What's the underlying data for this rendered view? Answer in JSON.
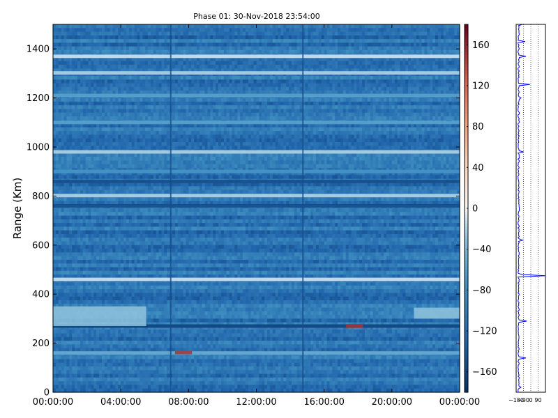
{
  "chart_data": [
    {
      "type": "heatmap",
      "title": "Phase 01: 30-Nov-2018 23:54:00",
      "xlabel": "",
      "ylabel": "Range (Km)",
      "xlim": [
        0,
        24
      ],
      "ylim": [
        0,
        1500
      ],
      "x_ticks": [
        {
          "value": 0,
          "label": "00:00:00"
        },
        {
          "value": 4,
          "label": "04:00:00"
        },
        {
          "value": 8,
          "label": "08:00:00"
        },
        {
          "value": 12,
          "label": "12:00:00"
        },
        {
          "value": 16,
          "label": "16:00:00"
        },
        {
          "value": 20,
          "label": "20:00:00"
        },
        {
          "value": 24,
          "label": "00:00:00"
        }
      ],
      "y_ticks": [
        {
          "value": 0,
          "label": "0"
        },
        {
          "value": 200,
          "label": "200"
        },
        {
          "value": 400,
          "label": "400"
        },
        {
          "value": 600,
          "label": "600"
        },
        {
          "value": 800,
          "label": "800"
        },
        {
          "value": 1000,
          "label": "1000"
        },
        {
          "value": 1200,
          "label": "1200"
        },
        {
          "value": 1400,
          "label": "1400"
        }
      ],
      "colorbar": {
        "colormap": "RdBu_r",
        "range": [
          -180,
          180
        ],
        "ticks": [
          {
            "value": 160,
            "label": "160"
          },
          {
            "value": 120,
            "label": "120"
          },
          {
            "value": 80,
            "label": "80"
          },
          {
            "value": 40,
            "label": "40"
          },
          {
            "value": 0,
            "label": "0"
          },
          {
            "value": -40,
            "label": "−40"
          },
          {
            "value": -80,
            "label": "−80"
          },
          {
            "value": -120,
            "label": "−120"
          },
          {
            "value": -160,
            "label": "−160"
          }
        ]
      },
      "background_phase": -110,
      "bands": [
        {
          "range_km": 1370,
          "phase": -10
        },
        {
          "range_km": 1302,
          "phase": -20
        },
        {
          "range_km": 1210,
          "phase": -60
        },
        {
          "range_km": 1100,
          "phase": -60
        },
        {
          "range_km": 980,
          "phase": -20
        },
        {
          "range_km": 900,
          "phase": -70
        },
        {
          "range_km": 860,
          "phase": -150
        },
        {
          "range_km": 802,
          "phase": -20
        },
        {
          "range_km": 760,
          "phase": -150
        },
        {
          "range_km": 460,
          "phase": -10
        },
        {
          "range_km": 270,
          "phase": -160
        },
        {
          "range_km": 160,
          "phase": -50
        }
      ],
      "features": [
        {
          "x_start": 0,
          "x_end": 5.5,
          "range_low": 270,
          "range_high": 350,
          "phase": -30
        },
        {
          "x_start": 21.3,
          "x_end": 24,
          "range_low": 300,
          "range_high": 345,
          "phase": -30
        },
        {
          "x_start": 7.2,
          "x_end": 8.2,
          "range_low": 155,
          "range_high": 168,
          "phase": 150
        },
        {
          "x_start": 17.3,
          "x_end": 18.3,
          "range_low": 262,
          "range_high": 278,
          "phase": 150
        }
      ],
      "vertical_lines": [
        {
          "x": 6.95,
          "phase": -150
        },
        {
          "x": 14.75,
          "phase": -150
        }
      ]
    },
    {
      "type": "line",
      "title": "",
      "xlabel": "",
      "ylabel": "",
      "xlim": [
        -180,
        180
      ],
      "ylim": [
        0,
        1500
      ],
      "x_ticks": [
        {
          "value": -180,
          "label": "−180"
        },
        {
          "value": -90,
          "label": "−90"
        },
        {
          "value": 0,
          "label": "0"
        },
        {
          "value": 90,
          "label": "90"
        }
      ],
      "series_color": "#0000ff",
      "profile_base": -150,
      "spikes": [
        {
          "range_km": 1500,
          "phase": -100
        },
        {
          "range_km": 1430,
          "phase": -70
        },
        {
          "range_km": 1370,
          "phase": -60
        },
        {
          "range_km": 1255,
          "phase": -10
        },
        {
          "range_km": 1200,
          "phase": -120
        },
        {
          "range_km": 980,
          "phase": -90
        },
        {
          "range_km": 620,
          "phase": -100
        },
        {
          "range_km": 480,
          "phase": -110
        },
        {
          "range_km": 475,
          "phase": 180
        },
        {
          "range_km": 290,
          "phase": -50
        },
        {
          "range_km": 140,
          "phase": -60
        },
        {
          "range_km": 20,
          "phase": -120
        }
      ]
    }
  ]
}
